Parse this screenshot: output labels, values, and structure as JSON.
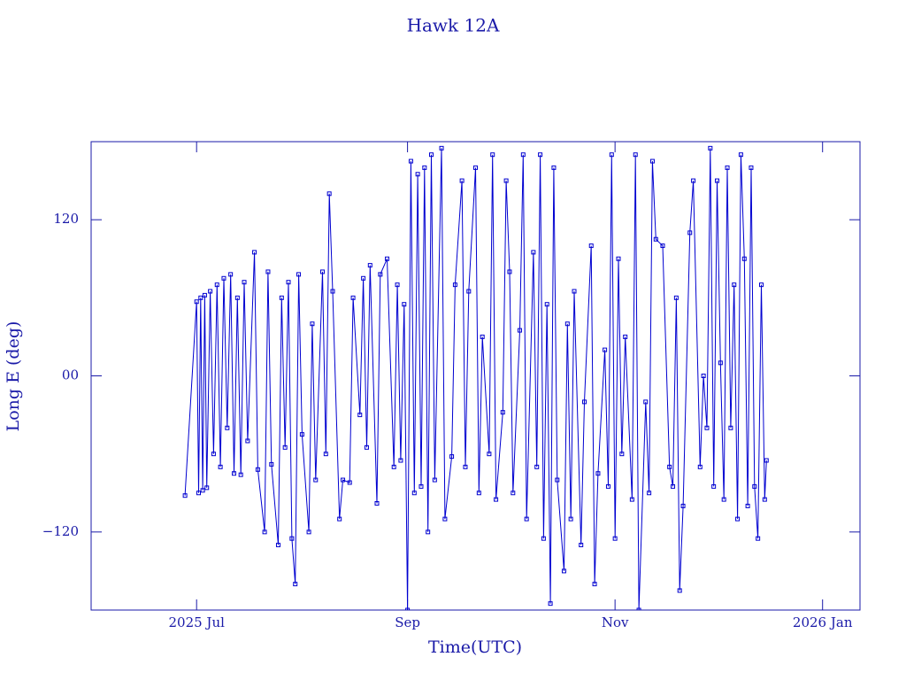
{
  "chart_data": {
    "type": "line",
    "title": "Hawk 12A",
    "x_label": "Time(UTC)",
    "y_label": "Long E (deg)",
    "color": "#0000d0",
    "marker": "square",
    "xlim": [
      -31,
      195
    ],
    "ylim": [
      -180,
      180
    ],
    "xticks": [
      {
        "value": 0,
        "label": "2025 Jul"
      },
      {
        "value": 62,
        "label": "Sep"
      },
      {
        "value": 123,
        "label": "Nov"
      },
      {
        "value": 184,
        "label": "2026 Jan"
      }
    ],
    "yticks": [
      {
        "value": -120,
        "label": "−120"
      },
      {
        "value": 0,
        "label": "00"
      },
      {
        "value": 120,
        "label": "120"
      }
    ],
    "x": [
      -3.4,
      0,
      0.6,
      1.2,
      1.8,
      2.4,
      3,
      4,
      5,
      6,
      7,
      8,
      9,
      10,
      11,
      12,
      13,
      14,
      15,
      17,
      18,
      20,
      21,
      22,
      24,
      25,
      26,
      27,
      28,
      29,
      30,
      31,
      33,
      34,
      35,
      37,
      38,
      39,
      40,
      42,
      43,
      45,
      46,
      48,
      49,
      50,
      51,
      53,
      54,
      56,
      58,
      59,
      60,
      61,
      62,
      63,
      64,
      65,
      66,
      67,
      68,
      69,
      70,
      72,
      73,
      75,
      76,
      78,
      79,
      80,
      82,
      83,
      84,
      86,
      87,
      88,
      90,
      91,
      92,
      93,
      95,
      96,
      97,
      99,
      100,
      101,
      102,
      103,
      104,
      105,
      106,
      108,
      109,
      110,
      111,
      113,
      114,
      116,
      117,
      118,
      120,
      121,
      122,
      123,
      124,
      125,
      126,
      128,
      129,
      130,
      132,
      133,
      134,
      135,
      137,
      139,
      140,
      141,
      142,
      143,
      145,
      146,
      148,
      149,
      150,
      151,
      152,
      153,
      154,
      155,
      156,
      157,
      158,
      159,
      160,
      161,
      162,
      163,
      164,
      165,
      166,
      167,
      167.5
    ],
    "values": [
      -92,
      57,
      -90,
      60,
      -88,
      62,
      -86,
      65,
      -60,
      70,
      -70,
      75,
      -40,
      78,
      -75,
      60,
      -76,
      72,
      -50,
      95,
      -72,
      -120,
      80,
      -68,
      -130,
      60,
      -55,
      72,
      -125,
      -160,
      78,
      -45,
      -120,
      40,
      -80,
      80,
      -60,
      140,
      65,
      -110,
      -80,
      -82,
      60,
      -30,
      75,
      -55,
      85,
      -98,
      78,
      90,
      -70,
      70,
      -65,
      55,
      -180,
      165,
      -90,
      155,
      -85,
      160,
      -120,
      170,
      -80,
      175,
      -110,
      -62,
      70,
      150,
      -70,
      65,
      160,
      -90,
      30,
      -60,
      170,
      -95,
      -28,
      150,
      80,
      -90,
      35,
      170,
      -110,
      95,
      -70,
      170,
      -125,
      55,
      -175,
      160,
      -80,
      -150,
      40,
      -110,
      65,
      -130,
      -20,
      100,
      -160,
      -75,
      20,
      -85,
      170,
      -125,
      90,
      -60,
      30,
      -95,
      170,
      -180,
      -20,
      -90,
      165,
      105,
      100,
      -70,
      -85,
      60,
      -165,
      -100,
      110,
      150,
      -70,
      0,
      -40,
      175,
      -85,
      150,
      10,
      -95,
      160,
      -40,
      70,
      -110,
      170,
      90,
      -100,
      160,
      -85,
      -125,
      70,
      -95,
      -65
    ]
  }
}
